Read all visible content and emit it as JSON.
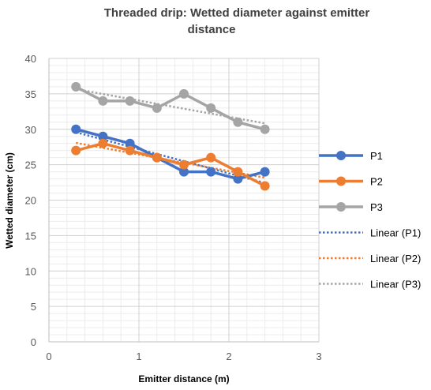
{
  "chart_data": {
    "type": "line",
    "title": [
      "Threaded drip: Wetted diameter against emitter",
      "distance"
    ],
    "xlabel": "Emitter distance (m)",
    "ylabel": "Wetted diameter (cm)",
    "xlim": [
      0,
      3
    ],
    "ylim": [
      0,
      40
    ],
    "xticks": [
      0,
      1,
      2,
      3
    ],
    "yticks": [
      0,
      5,
      10,
      15,
      20,
      25,
      30,
      35,
      40
    ],
    "grid": true,
    "legend_position": "right",
    "x": [
      0.3,
      0.6,
      0.9,
      1.2,
      1.5,
      1.8,
      2.1,
      2.4
    ],
    "series": [
      {
        "name": "P1",
        "color": "#4472C4",
        "values": [
          30,
          29,
          28,
          26,
          24,
          24,
          23,
          24
        ]
      },
      {
        "name": "P2",
        "color": "#ED7D31",
        "values": [
          27,
          28,
          27,
          26,
          25,
          26,
          24,
          22
        ]
      },
      {
        "name": "P3",
        "color": "#A5A5A5",
        "values": [
          36,
          34,
          34,
          33,
          35,
          33,
          31,
          30
        ]
      }
    ],
    "trendlines": [
      {
        "name": "Linear (P1)",
        "color": "#4472C4"
      },
      {
        "name": "Linear (P2)",
        "color": "#ED7D31"
      },
      {
        "name": "Linear (P3)",
        "color": "#A5A5A5"
      }
    ]
  }
}
